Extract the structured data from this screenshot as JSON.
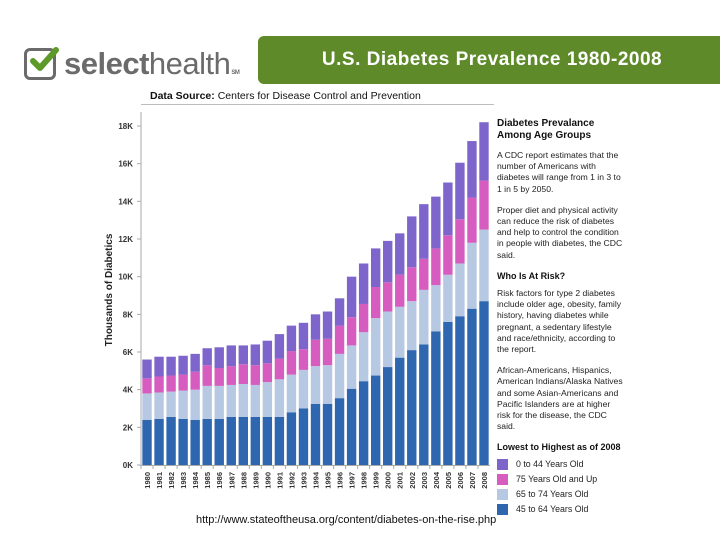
{
  "header": {
    "logo_text_bold": "select",
    "logo_text_regular": "health",
    "logo_tm": "SM",
    "title": "U.S. Diabetes Prevalence 1980-2008",
    "brand_color": "#5e8a2a"
  },
  "source": {
    "label": "Data Source:",
    "value": "Centers for Disease Control and Prevention"
  },
  "sidebar": {
    "heading": "Diabetes Prevalance Among Age Groups",
    "para1": "A CDC report estimates that the number of Americans with diabetes will range from 1 in 3 to 1 in 5 by 2050.",
    "para2": "Proper diet and physical activity can reduce the risk of diabetes and help to control the condition in people with diabetes, the CDC said.",
    "risk_heading": "Who Is At Risk?",
    "para3": "Risk factors for type 2 diabetes include older age, obesity, family history, having diabetes while pregnant, a sedentary lifestyle and race/ethnicity, according to the report.",
    "para4": "African-Americans, Hispanics, American Indians/Alaska Natives and some Asian-Americans and Pacific Islanders are at higher risk for the disease, the CDC said."
  },
  "footer": {
    "url": "http://www.stateoftheusa.org/content/diabetes-on-the-rise.php"
  },
  "chart_data": {
    "type": "bar",
    "stacked": true,
    "title": "U.S. Diabetes Prevalence 1980-2008",
    "xlabel": "",
    "ylabel": "Thousands of Diabetics",
    "ylim": [
      0,
      18000
    ],
    "yticks": [
      0,
      2000,
      4000,
      6000,
      8000,
      10000,
      12000,
      14000,
      16000,
      18000
    ],
    "ytick_labels": [
      "0K",
      "2K",
      "4K",
      "6K",
      "8K",
      "10K",
      "12K",
      "14K",
      "16K",
      "18K"
    ],
    "grid": false,
    "legend_title": "Lowest to Highest as of 2008",
    "legend_position": "right",
    "categories": [
      "1980",
      "1981",
      "1982",
      "1983",
      "1984",
      "1985",
      "1986",
      "1987",
      "1988",
      "1989",
      "1990",
      "1991",
      "1992",
      "1993",
      "1994",
      "1995",
      "1996",
      "1997",
      "1998",
      "1999",
      "2000",
      "2001",
      "2002",
      "2003",
      "2004",
      "2005",
      "2006",
      "2007",
      "2008"
    ],
    "series": [
      {
        "name": "45 to 64 Years Old",
        "color": "#2e66b0",
        "values": [
          2400,
          2450,
          2550,
          2450,
          2400,
          2450,
          2450,
          2550,
          2550,
          2550,
          2550,
          2550,
          2800,
          3000,
          3250,
          3250,
          3550,
          4050,
          4450,
          4750,
          5200,
          5700,
          6100,
          6400,
          7100,
          7600,
          7900,
          8300,
          8700
        ]
      },
      {
        "name": "65 to 74 Years Old",
        "color": "#b7c9e2",
        "values": [
          1400,
          1400,
          1350,
          1500,
          1600,
          1750,
          1750,
          1700,
          1750,
          1700,
          1850,
          2000,
          2000,
          2050,
          2000,
          2050,
          2350,
          2300,
          2600,
          3050,
          2950,
          2700,
          2600,
          2900,
          2450,
          2500,
          2800,
          3500,
          3800
        ]
      },
      {
        "name": "75 Years Old and Up",
        "color": "#d65dbf",
        "values": [
          800,
          850,
          850,
          850,
          950,
          1100,
          950,
          1000,
          1050,
          1050,
          1000,
          1100,
          1250,
          1100,
          1400,
          1400,
          1500,
          1500,
          1500,
          1650,
          1550,
          1700,
          1800,
          1650,
          1950,
          2100,
          2350,
          2400,
          2600
        ]
      },
      {
        "name": "0 to 44 Years Old",
        "color": "#7d65cc",
        "values": [
          1000,
          1050,
          1000,
          1000,
          950,
          900,
          1100,
          1100,
          1000,
          1100,
          1200,
          1300,
          1350,
          1400,
          1350,
          1450,
          1450,
          2150,
          2150,
          2050,
          2200,
          2200,
          2700,
          2900,
          2750,
          2800,
          3000,
          3000,
          3100
        ]
      }
    ],
    "legend_order": [
      "0 to 44 Years Old",
      "75 Years Old and Up",
      "65 to 74 Years Old",
      "45 to 64 Years Old"
    ]
  }
}
